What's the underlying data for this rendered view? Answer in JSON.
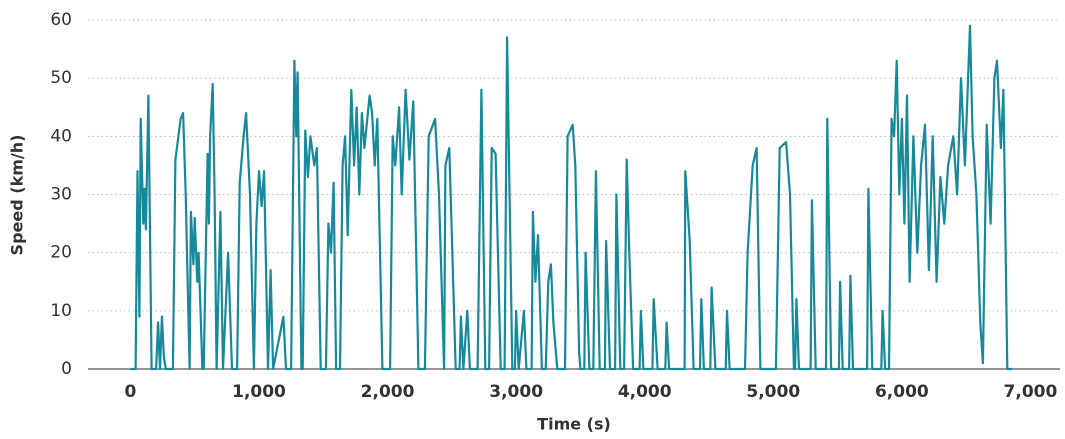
{
  "chart_data": {
    "type": "line",
    "x_label": "Time (s)",
    "y_label": "Speed (km/h)",
    "xlim": [
      -330,
      7230
    ],
    "ylim": [
      0,
      60
    ],
    "xticks": [
      0,
      {
        "value": 1000,
        "label": "1,000"
      },
      {
        "value": 2000,
        "label": "2,000"
      },
      {
        "value": 3000,
        "label": "3,000"
      },
      {
        "value": 4000,
        "label": "4,000"
      },
      {
        "value": 5000,
        "label": "5,000"
      },
      {
        "value": 6000,
        "label": "6,000"
      },
      {
        "value": 7000,
        "label": "7,000"
      }
    ],
    "yticks": [
      0,
      10,
      20,
      30,
      40,
      50,
      60
    ],
    "grid": true,
    "series": [
      {
        "color": "#16899a",
        "x": [
          0,
          40,
          55,
          70,
          80,
          100,
          110,
          120,
          140,
          165,
          200,
          215,
          230,
          245,
          260,
          275,
          330,
          350,
          390,
          410,
          430,
          460,
          470,
          490,
          500,
          520,
          530,
          560,
          570,
          600,
          610,
          620,
          640,
          655,
          670,
          700,
          720,
          760,
          790,
          830,
          850,
          880,
          900,
          930,
          960,
          980,
          1000,
          1020,
          1040,
          1070,
          1090,
          1110,
          1190,
          1210,
          1250,
          1275,
          1290,
          1300,
          1330,
          1340,
          1360,
          1380,
          1400,
          1430,
          1450,
          1480,
          1520,
          1540,
          1560,
          1580,
          1600,
          1630,
          1650,
          1670,
          1690,
          1718,
          1740,
          1760,
          1780,
          1800,
          1820,
          1860,
          1880,
          1900,
          1920,
          1960,
          2020,
          2040,
          2060,
          2090,
          2110,
          2140,
          2170,
          2200,
          2240,
          2290,
          2320,
          2370,
          2400,
          2440,
          2450,
          2480,
          2530,
          2560,
          2570,
          2590,
          2620,
          2640,
          2700,
          2730,
          2760,
          2790,
          2810,
          2840,
          2880,
          2910,
          2930,
          2970,
          2990,
          3000,
          3020,
          3060,
          3080,
          3120,
          3130,
          3150,
          3170,
          3200,
          3230,
          3250,
          3270,
          3290,
          3320,
          3380,
          3400,
          3440,
          3460,
          3490,
          3500,
          3530,
          3540,
          3570,
          3600,
          3620,
          3650,
          3690,
          3700,
          3730,
          3770,
          3780,
          3810,
          3840,
          3860,
          3880,
          3910,
          3960,
          3970,
          3990,
          4060,
          4070,
          4100,
          4160,
          4170,
          4190,
          4310,
          4316,
          4350,
          4380,
          4430,
          4440,
          4460,
          4510,
          4520,
          4550,
          4630,
          4640,
          4660,
          4780,
          4800,
          4840,
          4870,
          4900,
          5020,
          5050,
          5100,
          5130,
          5160,
          5170,
          5180,
          5200,
          5290,
          5300,
          5330,
          5410,
          5420,
          5450,
          5510,
          5520,
          5540,
          5590,
          5600,
          5620,
          5730,
          5740,
          5770,
          5840,
          5850,
          5870,
          5900,
          5920,
          5940,
          5960,
          5980,
          6000,
          6020,
          6040,
          6060,
          6090,
          6120,
          6150,
          6180,
          6210,
          6240,
          6270,
          6300,
          6330,
          6360,
          6400,
          6430,
          6460,
          6490,
          6530,
          6550,
          6580,
          6610,
          6630,
          6660,
          6690,
          6720,
          6740,
          6770,
          6790,
          6820,
          6860
        ],
        "values": [
          0,
          0,
          34,
          9,
          43,
          25,
          31,
          24,
          47,
          0,
          0,
          8,
          0,
          9,
          2,
          0,
          0,
          36,
          43,
          44,
          30,
          0,
          27,
          18,
          26,
          15,
          20,
          0,
          0,
          37,
          25,
          40,
          49,
          30,
          0,
          27,
          0,
          20,
          0,
          0,
          32,
          40,
          44,
          30,
          0,
          25,
          34,
          28,
          34,
          0,
          17,
          0,
          9,
          0,
          0,
          53,
          40,
          51,
          0,
          0,
          41,
          33,
          40,
          35,
          38,
          0,
          0,
          25,
          20,
          32,
          0,
          0,
          35,
          40,
          23,
          48,
          35,
          45,
          30,
          44,
          38,
          47,
          44,
          35,
          43,
          0,
          0,
          40,
          35,
          45,
          30,
          48,
          36,
          46,
          0,
          0,
          40,
          43,
          30,
          0,
          35,
          38,
          0,
          0,
          9,
          0,
          10,
          0,
          0,
          48,
          0,
          0,
          38,
          37,
          0,
          0,
          57,
          0,
          0,
          10,
          0,
          10,
          0,
          0,
          27,
          15,
          23,
          0,
          0,
          15,
          18,
          8,
          0,
          0,
          40,
          42,
          35,
          3,
          0,
          0,
          20,
          0,
          0,
          34,
          0,
          0,
          22,
          0,
          0,
          30,
          0,
          0,
          36,
          20,
          0,
          0,
          10,
          0,
          0,
          12,
          0,
          0,
          8,
          0,
          0,
          34,
          22,
          0,
          0,
          12,
          0,
          0,
          14,
          0,
          0,
          10,
          0,
          0,
          20,
          35,
          38,
          0,
          0,
          38,
          39,
          30,
          0,
          0,
          12,
          0,
          0,
          29,
          0,
          0,
          43,
          0,
          0,
          15,
          0,
          0,
          16,
          0,
          0,
          31,
          0,
          0,
          10,
          0,
          0,
          43,
          40,
          53,
          30,
          43,
          25,
          47,
          15,
          40,
          20,
          35,
          42,
          17,
          40,
          15,
          33,
          25,
          35,
          40,
          30,
          50,
          35,
          59,
          40,
          30,
          8,
          1,
          42,
          25,
          50,
          53,
          38,
          48,
          0,
          0
        ]
      }
    ]
  }
}
